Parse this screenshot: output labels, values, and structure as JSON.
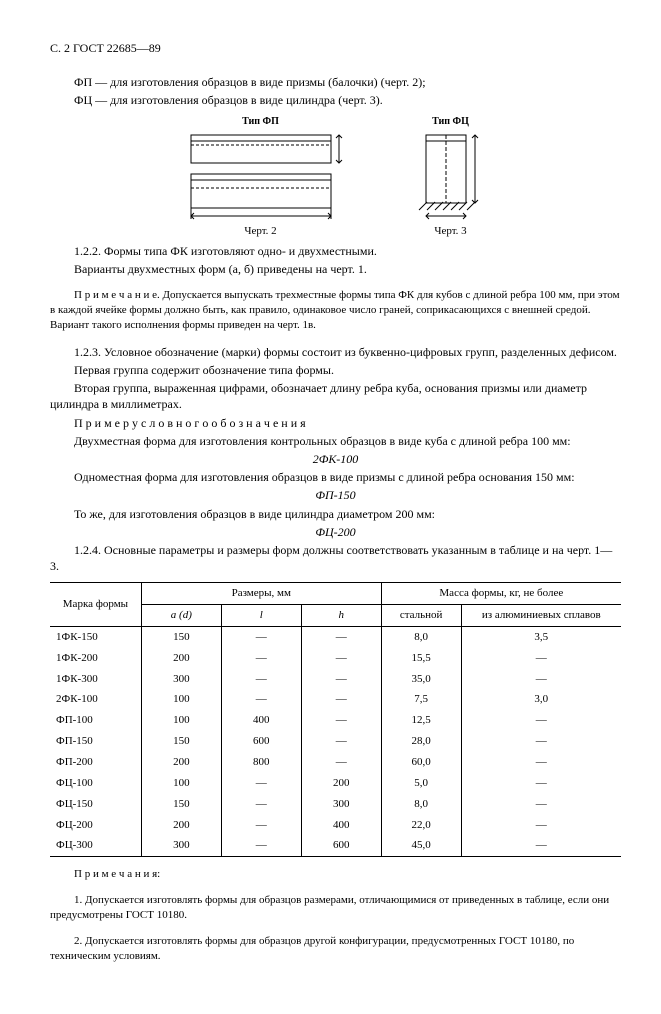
{
  "header": "С. 2 ГОСТ 22685—89",
  "intro": {
    "l1": "ФП — для изготовления образцов в виде призмы (балочки)  (черт. 2);",
    "l2": "ФЦ — для изготовления образцов в виде цилиндра (черт. 3)."
  },
  "figures": {
    "fp_label": "Тип ФП",
    "fc_label": "Тип ФЦ",
    "cap2": "Черт. 2",
    "cap3": "Черт. 3",
    "stroke": "#000000",
    "fill": "#ffffff",
    "hatch": "#000000"
  },
  "s122": {
    "l1": "1.2.2.  Формы типа ФК  изготовляют одно-  и двухместными.",
    "l2": "Варианты двухместных форм (а,  б)  приведены на черт. 1.",
    "note": "П р и м е ч а н и е.  Допускается выпускать трехместные формы типа ФК для кубов с длиной ребра 100 мм, при этом в каждой ячейке формы должно быть, как правило, одинаковое число граней, соприкасаю­щихся с внешней средой. Вариант такого исполнения формы приведен на черт. 1в."
  },
  "s123": {
    "l1": "1.2.3.  Условное обозначение (марки)  формы состоит из буквенно-цифровых групп, разделен­ных дефисом.",
    "l2": "Первая группа содержит обозначение типа формы.",
    "l3": "Вторая группа, выраженная цифрами, обозначает длину ребра куба, основания призмы или диаметр цилиндра в миллиметрах.",
    "example_hdr": "П р и м е р   у с л о в н о г о   о б о з н а ч е н и я",
    "ex1": "Двухместная форма для изготовления контрольных образцов в виде куба с длиной ребра 100 мм:",
    "ex1d": "2ФК-100",
    "ex2": "Одноместная форма для изготовления образцов в виде призмы с длиной ребра основания 150 мм:",
    "ex2d": "ФП-150",
    "ex3": "То же, для изготовления образцов в виде цилиндра диаметром 200 мм:",
    "ex3d": "ФЦ-200"
  },
  "s124": "1.2.4.  Основные параметры и размеры форм должны соответствовать указанным в таблице и на черт. 1—3.",
  "table": {
    "h_mark": "Марка формы",
    "h_dims": "Размеры, мм",
    "h_mass": "Масса формы, кг, не более",
    "h_a": "a  (d)",
    "h_l": "l",
    "h_h": "h",
    "h_steel": "стальной",
    "h_al": "из алюминиевых сплавов",
    "rows": [
      {
        "m": "1ФК-150",
        "a": "150",
        "l": "—",
        "h": "—",
        "s": "8,0",
        "al": "3,5"
      },
      {
        "m": "1ФК-200",
        "a": "200",
        "l": "—",
        "h": "—",
        "s": "15,5",
        "al": "—"
      },
      {
        "m": "1ФК-300",
        "a": "300",
        "l": "—",
        "h": "—",
        "s": "35,0",
        "al": "—"
      },
      {
        "m": "2ФК-100",
        "a": "100",
        "l": "—",
        "h": "—",
        "s": "7,5",
        "al": "3,0"
      },
      {
        "m": "ФП-100",
        "a": "100",
        "l": "400",
        "h": "—",
        "s": "12,5",
        "al": "—"
      },
      {
        "m": "ФП-150",
        "a": "150",
        "l": "600",
        "h": "—",
        "s": "28,0",
        "al": "—"
      },
      {
        "m": "ФП-200",
        "a": "200",
        "l": "800",
        "h": "—",
        "s": "60,0",
        "al": "—"
      },
      {
        "m": "ФЦ-100",
        "a": "100",
        "l": "—",
        "h": "200",
        "s": "5,0",
        "al": "—"
      },
      {
        "m": "ФЦ-150",
        "a": "150",
        "l": "—",
        "h": "300",
        "s": "8,0",
        "al": "—"
      },
      {
        "m": "ФЦ-200",
        "a": "200",
        "l": "—",
        "h": "400",
        "s": "22,0",
        "al": "—"
      },
      {
        "m": "ФЦ-300",
        "a": "300",
        "l": "—",
        "h": "600",
        "s": "45,0",
        "al": "—"
      }
    ]
  },
  "notes": {
    "hdr": "П р и м е ч а н и я:",
    "n1": "1. Допускается изготовлять формы для образцов размерами, отличающимися от приведенных в таблице, если они предусмотрены ГОСТ 10180.",
    "n2": "2. Допускается изготовлять формы для образцов другой конфигурации, предусмотренных ГОСТ 10180, по техническим условиям."
  }
}
